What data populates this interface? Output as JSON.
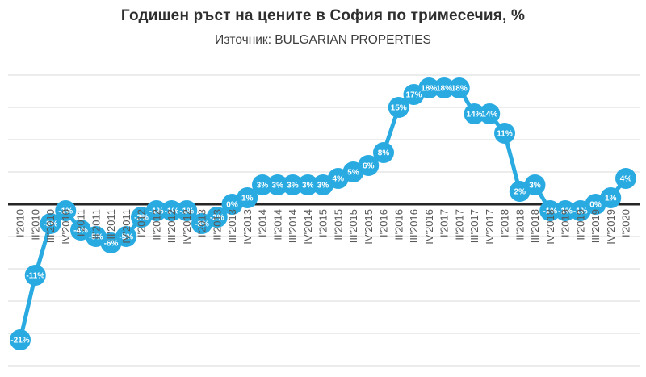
{
  "chart_data": {
    "type": "line",
    "title": "Годишен ръст на цените в София по тримесечия, %",
    "subtitle": "Източник: BULGARIAN PROPERTIES",
    "unit": "%",
    "categories": [
      "I'2010",
      "II'2010",
      "III'2010",
      "IV'2010",
      "I'2011",
      "II'2011",
      "III'2011",
      "IV'2011",
      "I'2012",
      "II'2012",
      "III'2012",
      "IV'2012",
      "I'2013",
      "II'2013",
      "III'2013",
      "IV'2013",
      "I'2014",
      "II'2014",
      "III'2014",
      "IV'2014",
      "I'2015",
      "II'2015",
      "III'2015",
      "IV'2015",
      "I'2016",
      "II'2016",
      "III'2016",
      "IV'2016",
      "I'2017",
      "II'2017",
      "III'2017",
      "IV'2017",
      "I'2018",
      "II'2018",
      "III'2018",
      "IV'2018",
      "I'2019",
      "II'2019",
      "III'2019",
      "IV'2019",
      "I'2020"
    ],
    "values": [
      -21,
      -11,
      -3,
      -1,
      -4,
      -5,
      -6,
      -5,
      -2,
      -1,
      -1,
      -1,
      -3,
      -2,
      0,
      1,
      3,
      3,
      3,
      3,
      3,
      4,
      5,
      6,
      8,
      15,
      17,
      18,
      18,
      18,
      14,
      14,
      11,
      2,
      3,
      -1,
      -1,
      -1,
      0,
      1,
      4
    ],
    "obscured_points_estimated": [
      "II'2011",
      "III'2011",
      "IV'2011"
    ],
    "data_labels": "value shown inside each circular marker",
    "ylim": [
      -25,
      20
    ],
    "gridline_step": 5,
    "grid": true,
    "legend": "none",
    "colors": {
      "line": "#29ABE2",
      "marker": "#29ABE2",
      "marker_label": "#ffffff",
      "zero_line": "#262626",
      "gridline": "#D9D9D9",
      "axis_text": "#595959",
      "title_text": "#2F2F2F"
    }
  }
}
